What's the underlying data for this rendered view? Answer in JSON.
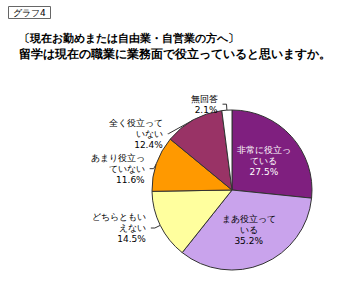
{
  "chart_data": {
    "type": "pie",
    "annotations": [
      "グラフ4"
    ],
    "title": "〔現在お勤めまたは自由業・自営業の方へ〕",
    "subtitle": "留学は現在の職業に業務面で役立っていると思いますか。",
    "categories": [
      "非常に役立っている",
      "まあ役立っている",
      "どちらともいえない",
      "あまり役立っていない",
      "全く役立っていない",
      "無回答"
    ],
    "values": [
      27.5,
      35.2,
      14.5,
      11.6,
      12.4,
      2.1
    ],
    "value_labels": [
      "27.5%",
      "35.2%",
      "14.5%",
      "11.6%",
      "12.4%",
      "2.1%"
    ],
    "colors": [
      "#7f1f7f",
      "#c9a3ec",
      "#ffff9e",
      "#ff9900",
      "#993366",
      "#ffffff"
    ],
    "data_labels": true
  }
}
